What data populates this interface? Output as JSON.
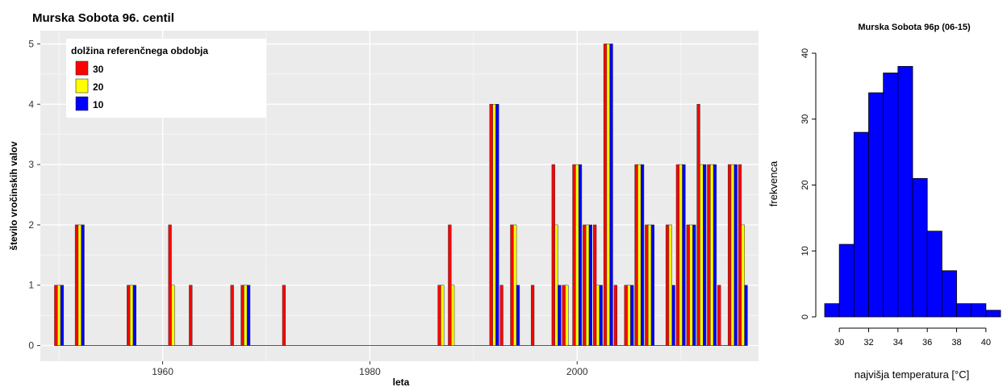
{
  "chart_data": [
    {
      "type": "bar",
      "title": "Murska Sobota 96. centil",
      "xlabel": "leta",
      "ylabel": "število vročinskih valov",
      "xlim": [
        1948,
        2018
      ],
      "ylim": [
        0,
        5
      ],
      "x_ticks": [
        1960,
        1980,
        2000
      ],
      "y_ticks": [
        0,
        1,
        2,
        3,
        4,
        5
      ],
      "grid": true,
      "legend": {
        "title": "dolžina referenčnega obdobja",
        "position": "top-left"
      },
      "years": [
        1950,
        1952,
        1957,
        1961,
        1963,
        1967,
        1968,
        1972,
        1987,
        1988,
        1992,
        1993,
        1994,
        1996,
        1998,
        1999,
        2000,
        2001,
        2002,
        2003,
        2004,
        2005,
        2006,
        2007,
        2009,
        2010,
        2011,
        2012,
        2013,
        2014,
        2015,
        2016
      ],
      "series": [
        {
          "name": "30",
          "color": "#ff0000",
          "values": [
            1,
            2,
            1,
            2,
            1,
            1,
            1,
            1,
            1,
            2,
            4,
            1,
            2,
            1,
            3,
            1,
            3,
            2,
            2,
            5,
            1,
            1,
            3,
            2,
            2,
            3,
            2,
            4,
            3,
            1,
            3,
            3
          ]
        },
        {
          "name": "20",
          "color": "#ffff00",
          "values": [
            1,
            2,
            1,
            1,
            0,
            0,
            1,
            0,
            1,
            1,
            4,
            0,
            2,
            0,
            2,
            1,
            3,
            2,
            1,
            5,
            0,
            1,
            3,
            2,
            2,
            3,
            2,
            3,
            3,
            0,
            3,
            2
          ]
        },
        {
          "name": "10",
          "color": "#0000ff",
          "values": [
            1,
            2,
            1,
            0,
            0,
            0,
            1,
            0,
            0,
            0,
            4,
            0,
            1,
            0,
            1,
            0,
            3,
            2,
            1,
            5,
            0,
            1,
            3,
            2,
            1,
            3,
            2,
            3,
            3,
            0,
            3,
            1
          ]
        }
      ]
    },
    {
      "type": "bar",
      "subtype": "histogram",
      "title": "Murska Sobota 96p (06-15)",
      "xlabel": "najvišja temperatura [°C]",
      "ylabel": "frekvenca",
      "xlim": [
        29,
        41
      ],
      "ylim": [
        0,
        40
      ],
      "x_ticks": [
        30,
        32,
        34,
        36,
        38,
        40
      ],
      "y_ticks": [
        0,
        10,
        20,
        30,
        40
      ],
      "bar_color": "#0000ff",
      "bin_width": 1,
      "bin_starts": [
        29,
        30,
        31,
        32,
        33,
        34,
        35,
        36,
        37,
        38,
        39,
        40
      ],
      "values": [
        2,
        11,
        28,
        34,
        37,
        38,
        21,
        13,
        7,
        2,
        2,
        1
      ]
    }
  ]
}
